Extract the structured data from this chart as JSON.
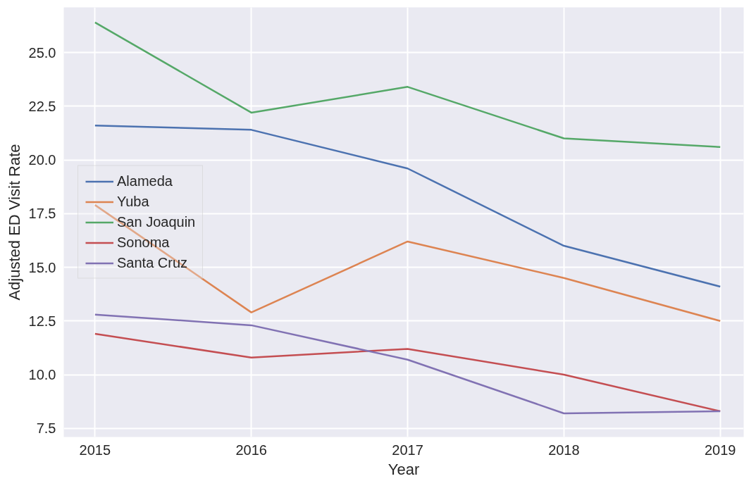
{
  "chart_data": {
    "type": "line",
    "xlabel": "Year",
    "ylabel": "Adjusted ED Visit Rate",
    "x": [
      2015,
      2016,
      2017,
      2018,
      2019
    ],
    "series": [
      {
        "name": "Alameda",
        "color": "#4c72b0",
        "values": [
          21.6,
          21.4,
          19.6,
          16.0,
          14.1
        ]
      },
      {
        "name": "Yuba",
        "color": "#dd8452",
        "values": [
          17.9,
          12.9,
          16.2,
          14.5,
          12.5
        ]
      },
      {
        "name": "San Joaquin",
        "color": "#55a868",
        "values": [
          26.4,
          22.2,
          23.4,
          21.0,
          20.6
        ]
      },
      {
        "name": "Sonoma",
        "color": "#c44e52",
        "values": [
          11.9,
          10.8,
          11.2,
          10.0,
          8.3
        ]
      },
      {
        "name": "Santa Cruz",
        "color": "#8172b3",
        "values": [
          12.8,
          12.3,
          10.7,
          8.2,
          8.3
        ]
      }
    ],
    "xlim": [
      2014.8,
      2019.15
    ],
    "ylim": [
      7.1,
      27.1
    ],
    "xticks": [
      2015,
      2016,
      2017,
      2018,
      2019
    ],
    "yticks": [
      {
        "value": 7.5,
        "label": "7.5"
      },
      {
        "value": 10,
        "label": "10.0"
      },
      {
        "value": 12.5,
        "label": "12.5"
      },
      {
        "value": 15,
        "label": "15.0"
      },
      {
        "value": 17.5,
        "label": "17.5"
      },
      {
        "value": 20,
        "label": "20.0"
      },
      {
        "value": 22.5,
        "label": "22.5"
      },
      {
        "value": 25,
        "label": "25.0"
      }
    ],
    "grid": true,
    "legend": "center left",
    "marker": "none",
    "line_style": "solid"
  }
}
